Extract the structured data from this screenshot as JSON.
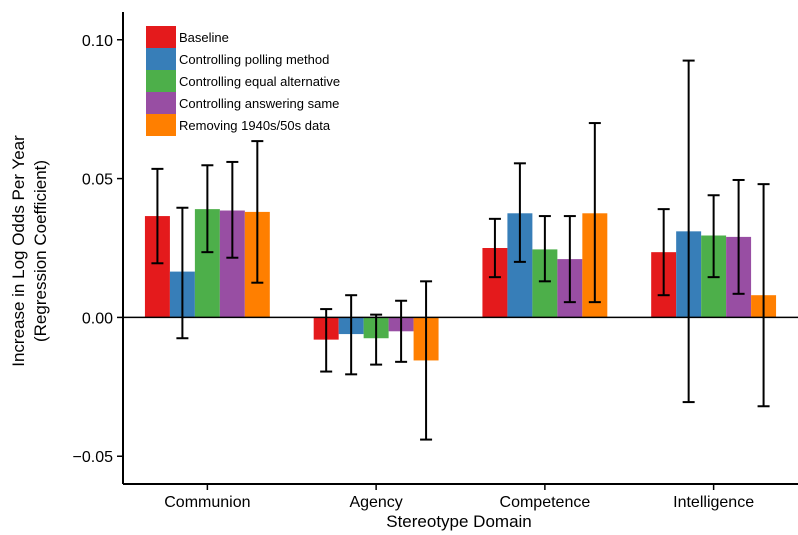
{
  "chart_data": {
    "type": "bar",
    "xlabel": "Stereotype Domain",
    "ylabel_line1": "Increase in Log Odds Per Year",
    "ylabel_line2": "(Regression Coefficient)",
    "categories": [
      "Communion",
      "Agency",
      "Competence",
      "Intelligence"
    ],
    "ylim": [
      -0.06,
      0.11
    ],
    "yticks": [
      -0.05,
      0.0,
      0.05,
      0.1
    ],
    "ytick_labels": [
      "−0.05",
      "0.00",
      "0.05",
      "0.10"
    ],
    "legend_position": "top-left",
    "grid": false,
    "series": [
      {
        "name": "Baseline",
        "color": "#e41a1c",
        "values": [
          0.0365,
          -0.008,
          0.025,
          0.0235
        ],
        "err_low": [
          0.0195,
          -0.0195,
          0.0145,
          0.008
        ],
        "err_high": [
          0.0535,
          0.003,
          0.0355,
          0.039
        ]
      },
      {
        "name": "Controlling polling method",
        "color": "#377eb8",
        "values": [
          0.0165,
          -0.006,
          0.0375,
          0.031
        ],
        "err_low": [
          -0.0075,
          -0.0205,
          0.02,
          -0.0305
        ],
        "err_high": [
          0.0395,
          0.008,
          0.0555,
          0.0925
        ]
      },
      {
        "name": "Controlling equal alternative",
        "color": "#4daf4a",
        "values": [
          0.039,
          -0.0075,
          0.0245,
          0.0295
        ],
        "err_low": [
          0.0235,
          -0.017,
          0.013,
          0.0145
        ],
        "err_high": [
          0.0548,
          0.001,
          0.0365,
          0.044
        ]
      },
      {
        "name": "Controlling answering same",
        "color": "#984ea3",
        "values": [
          0.0385,
          -0.005,
          0.021,
          0.029
        ],
        "err_low": [
          0.0215,
          -0.016,
          0.0055,
          0.0085
        ],
        "err_high": [
          0.056,
          0.006,
          0.0365,
          0.0495
        ]
      },
      {
        "name": "Removing 1940s/50s data",
        "color": "#ff7f00",
        "values": [
          0.038,
          -0.0155,
          0.0375,
          0.008
        ],
        "err_low": [
          0.0125,
          -0.044,
          0.0055,
          -0.032
        ],
        "err_high": [
          0.0635,
          0.013,
          0.07,
          0.048
        ]
      }
    ]
  }
}
